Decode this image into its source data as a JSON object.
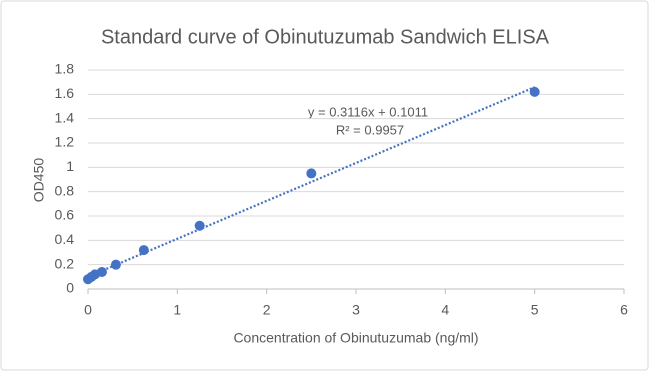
{
  "chart_data": {
    "type": "scatter",
    "title": "Standard curve of Obinutuzumab Sandwich ELISA",
    "xlabel": "Concentration of Obinutuzumab (ng/ml)",
    "ylabel": "OD450",
    "x": [
      0,
      0.039,
      0.078,
      0.156,
      0.3125,
      0.625,
      1.25,
      2.5,
      5
    ],
    "values": [
      0.08,
      0.1,
      0.12,
      0.14,
      0.2,
      0.32,
      0.52,
      0.95,
      1.62
    ],
    "color": "#4472c4",
    "xlim": [
      0,
      6
    ],
    "xticks": [
      0,
      1,
      2,
      3,
      4,
      5,
      6
    ],
    "ylim": [
      0,
      1.8
    ],
    "yticks": [
      0,
      0.2,
      0.4,
      0.6,
      0.8,
      1,
      1.2,
      1.4,
      1.6,
      1.8
    ],
    "grid": true,
    "trendline": {
      "equation": "y = 0.3116x + 0.1011",
      "r_squared": "R² = 0.9957",
      "slope": 0.3116,
      "intercept": 0.1011,
      "color": "#4472c4"
    }
  }
}
